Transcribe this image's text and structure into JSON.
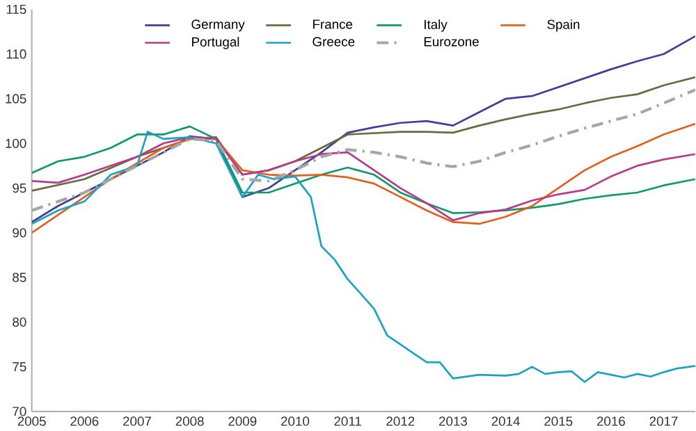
{
  "chart_data": {
    "type": "line",
    "xlim": [
      2005,
      2017.6
    ],
    "ylim": [
      70,
      115
    ],
    "xticks": [
      2005,
      2006,
      2007,
      2008,
      2009,
      2010,
      2011,
      2012,
      2013,
      2014,
      2015,
      2016,
      2017
    ],
    "yticks": [
      70,
      75,
      80,
      85,
      90,
      95,
      100,
      105,
      110,
      115
    ],
    "grid": false,
    "legend": "top",
    "marker": "none",
    "series": [
      {
        "name": "Germany",
        "color": "#3f3f9a",
        "x": [
          2005,
          2005.5,
          2006,
          2006.5,
          2007,
          2007.5,
          2008,
          2008.5,
          2009,
          2009.5,
          2010,
          2010.5,
          2011,
          2011.5,
          2012,
          2012.5,
          2013,
          2013.5,
          2014,
          2014.5,
          2015,
          2015.5,
          2016,
          2016.5,
          2017,
          2017.6
        ],
        "values": [
          91.2,
          93,
          94.5,
          96,
          97.5,
          99,
          100.8,
          100.5,
          94,
          95,
          97,
          99,
          101.2,
          101.8,
          102.3,
          102.5,
          102,
          103.5,
          105,
          105.3,
          106.3,
          107.3,
          108.3,
          109.2,
          110,
          112
        ]
      },
      {
        "name": "France",
        "color": "#6b6a3a",
        "x": [
          2005,
          2006,
          2007,
          2008,
          2008.5,
          2009,
          2009.5,
          2010,
          2010.5,
          2011,
          2012,
          2012.5,
          2013,
          2013.5,
          2014,
          2014.5,
          2015,
          2015.5,
          2016,
          2016.5,
          2017,
          2017.6
        ],
        "values": [
          94.7,
          96,
          98.5,
          100.5,
          100.7,
          96.5,
          97,
          98,
          99.5,
          101,
          101.3,
          101.3,
          101.2,
          102,
          102.7,
          103.3,
          103.8,
          104.5,
          105.1,
          105.5,
          106.5,
          107.4
        ]
      },
      {
        "name": "Italy",
        "color": "#0f9a6e",
        "x": [
          2005,
          2005.5,
          2006,
          2006.5,
          2007,
          2007.5,
          2008,
          2008.5,
          2009,
          2009.5,
          2010,
          2010.5,
          2011,
          2011.5,
          2012,
          2012.5,
          2013,
          2013.5,
          2014,
          2014.5,
          2015,
          2015.5,
          2016,
          2016.5,
          2017,
          2017.6
        ],
        "values": [
          96.7,
          98,
          98.5,
          99.5,
          101,
          101,
          101.9,
          100.5,
          94.5,
          94.5,
          95.5,
          96.5,
          97.3,
          96.5,
          94.5,
          93.3,
          92.2,
          92.3,
          92.5,
          92.8,
          93.2,
          93.8,
          94.2,
          94.5,
          95.3,
          96
        ]
      },
      {
        "name": "Spain",
        "color": "#e0611e",
        "x": [
          2005,
          2005.5,
          2006,
          2006.5,
          2007,
          2007.5,
          2008,
          2008.5,
          2009,
          2009.5,
          2010,
          2010.5,
          2011,
          2011.5,
          2012,
          2012.5,
          2013,
          2013.5,
          2014,
          2014.5,
          2015,
          2015.5,
          2016,
          2016.5,
          2017,
          2017.6
        ],
        "values": [
          90,
          92,
          94,
          96,
          97.8,
          99.5,
          100.5,
          100.5,
          97,
          96.5,
          96.4,
          96.5,
          96.2,
          95.5,
          94,
          92.5,
          91.2,
          91,
          91.8,
          93,
          95,
          97,
          98.5,
          99.7,
          101,
          102.2
        ]
      },
      {
        "name": "Portugal",
        "color": "#b83a8a",
        "x": [
          2005,
          2005.5,
          2006,
          2006.5,
          2007,
          2007.5,
          2008,
          2008.5,
          2009,
          2009.5,
          2010,
          2010.5,
          2011,
          2011.5,
          2012,
          2012.5,
          2013,
          2013.5,
          2014,
          2014.5,
          2015,
          2015.5,
          2016,
          2016.5,
          2017,
          2017.6
        ],
        "values": [
          95.8,
          95.6,
          96.5,
          97.5,
          98.5,
          100,
          100.7,
          100.5,
          96.5,
          97,
          98,
          98.8,
          99,
          97,
          95,
          93.3,
          91.4,
          92.2,
          92.6,
          93.6,
          94.3,
          94.8,
          96.3,
          97.5,
          98.2,
          98.8
        ]
      },
      {
        "name": "Greece",
        "color": "#1ba3c1",
        "x": [
          2005,
          2005.5,
          2006,
          2006.5,
          2007,
          2007.2,
          2007.5,
          2008,
          2008.5,
          2009,
          2009.3,
          2009.6,
          2010,
          2010.3,
          2010.5,
          2010.75,
          2011,
          2011.5,
          2011.75,
          2012,
          2012.5,
          2012.75,
          2013,
          2013.5,
          2014,
          2014.25,
          2014.5,
          2014.75,
          2015,
          2015.25,
          2015.5,
          2015.75,
          2016,
          2016.25,
          2016.5,
          2016.75,
          2017,
          2017.25,
          2017.6
        ],
        "values": [
          91,
          92.5,
          93.5,
          96.5,
          97.5,
          101.3,
          100.5,
          100.7,
          100,
          94,
          96.5,
          96,
          96.3,
          94,
          88.5,
          87,
          84.8,
          81.5,
          78.5,
          77.5,
          75.5,
          75.5,
          73.7,
          74.1,
          74,
          74.2,
          75,
          74.2,
          74.4,
          74.5,
          73.3,
          74.4,
          74.1,
          73.8,
          74.2,
          73.9,
          74.4,
          74.8,
          75.1
        ]
      },
      {
        "name": "Eurozone",
        "color": "#a6a6a6",
        "line_style": "dashed",
        "x": [
          2005,
          2006,
          2007,
          2008,
          2008.5,
          2009,
          2009.5,
          2010,
          2010.5,
          2011,
          2011.5,
          2012,
          2012.5,
          2013,
          2013.5,
          2014,
          2014.5,
          2015,
          2015.5,
          2016,
          2016.5,
          2017,
          2017.6
        ],
        "values": [
          92.5,
          94.5,
          97.5,
          100.5,
          100.3,
          96,
          95.8,
          97,
          98.5,
          99.3,
          99,
          98.5,
          97.8,
          97.4,
          98,
          99,
          99.8,
          100.8,
          101.7,
          102.5,
          103.3,
          104.5,
          106
        ]
      }
    ]
  }
}
